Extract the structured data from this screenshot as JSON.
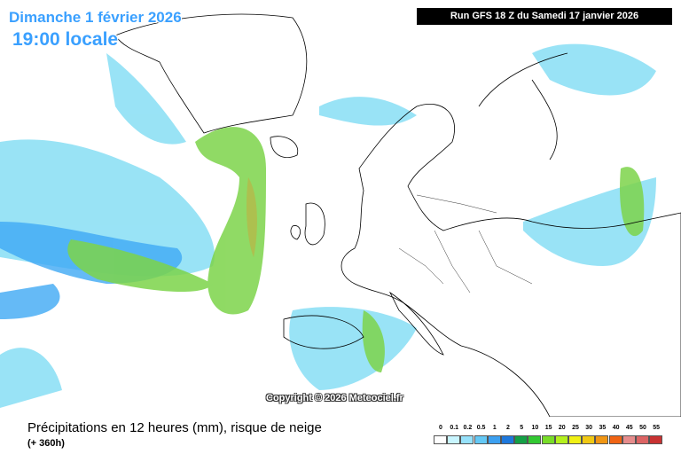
{
  "header": {
    "date": "Dimanche 1 février 2026",
    "time": "19:00 locale",
    "run": "Run GFS 18 Z du Samedi 17 janvier 2026"
  },
  "copyright": "Copyright © 2026 Meteociel.fr",
  "footer": {
    "caption": "Précipitations en 12 heures (mm), risque de neige",
    "lead_time": "(+ 360h)"
  },
  "legend": [
    {
      "label": 0,
      "color": "#ffffff"
    },
    {
      "label": 0.1,
      "color": "#c8f5ff"
    },
    {
      "label": 0.2,
      "color": "#96e1fa"
    },
    {
      "label": 0.5,
      "color": "#64c8f5"
    },
    {
      "label": 1,
      "color": "#3ca0f0"
    },
    {
      "label": 2,
      "color": "#1e78dc"
    },
    {
      "label": 5,
      "color": "#14a046"
    },
    {
      "label": 10,
      "color": "#32c832"
    },
    {
      "label": 15,
      "color": "#78dc28"
    },
    {
      "label": 20,
      "color": "#b4f01e"
    },
    {
      "label": 25,
      "color": "#f0f014"
    },
    {
      "label": 30,
      "color": "#f0c814"
    },
    {
      "label": 35,
      "color": "#f09614"
    },
    {
      "label": 40,
      "color": "#f06414"
    },
    {
      "label": 45,
      "color": "#e68c8c"
    },
    {
      "label": 50,
      "color": "#dc6464"
    },
    {
      "label": 55,
      "color": "#c83232"
    }
  ]
}
